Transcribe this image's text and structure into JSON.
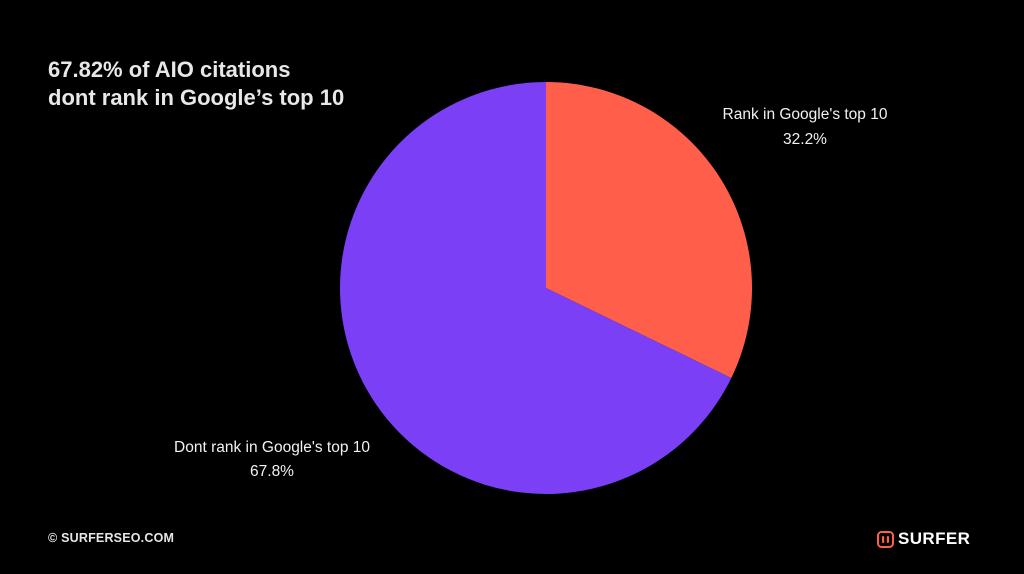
{
  "chart_data": {
    "type": "pie",
    "title_lines": [
      "67.82% of AIO citations",
      "dont rank in Google’s top 10"
    ],
    "slices": [
      {
        "label": "Rank in Google's top 10",
        "value": 32.2,
        "value_label": "32.2%",
        "color": "#ff5f4a"
      },
      {
        "label": "Dont rank in Google's top 10",
        "value": 67.8,
        "value_label": "67.8%",
        "color": "#7b3ff5"
      }
    ],
    "start": "12 o'clock",
    "direction": "clockwise",
    "legend": "none"
  },
  "footer": {
    "copyright": "© SURFERSEO.COM",
    "brand": "SURFER",
    "brand_color": "#ff5f4a"
  },
  "icons": {
    "brand": "surfer-logo-icon"
  }
}
